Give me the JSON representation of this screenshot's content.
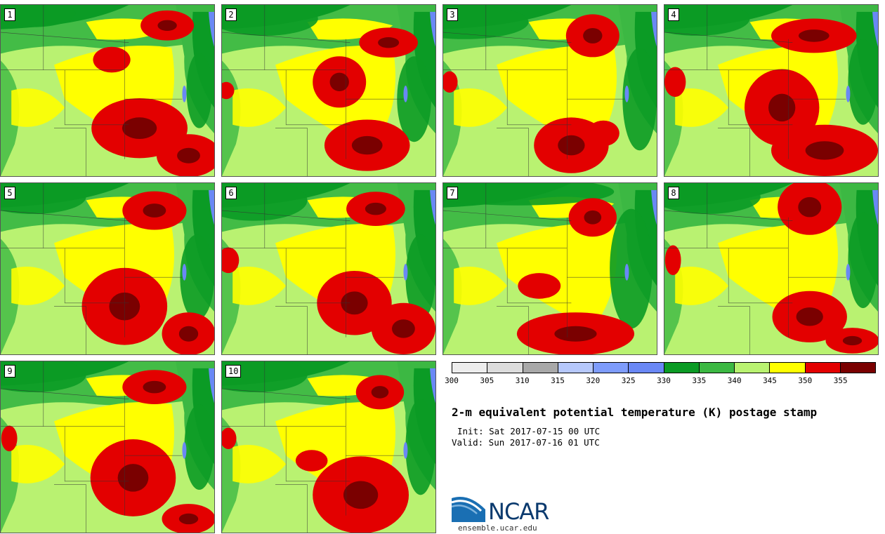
{
  "panels": [
    {
      "number": "1",
      "hot": [
        [
          0.78,
          0.12,
          0.1,
          0.07
        ],
        [
          0.52,
          0.32,
          0.07,
          0.06
        ],
        [
          0.65,
          0.72,
          0.18,
          0.14
        ],
        [
          0.88,
          0.88,
          0.12,
          0.1
        ]
      ],
      "cool": [
        [
          0.15,
          0.05,
          0.2,
          0.08
        ],
        [
          0.93,
          0.5,
          0.06,
          0.22
        ]
      ]
    },
    {
      "number": "2",
      "hot": [
        [
          0.78,
          0.22,
          0.11,
          0.07
        ],
        [
          0.55,
          0.45,
          0.1,
          0.12
        ],
        [
          0.68,
          0.82,
          0.16,
          0.12
        ],
        [
          0.02,
          0.5,
          0.03,
          0.04
        ]
      ],
      "cool": [
        [
          0.2,
          0.08,
          0.25,
          0.1
        ],
        [
          0.9,
          0.55,
          0.08,
          0.25
        ]
      ]
    },
    {
      "number": "3",
      "hot": [
        [
          0.7,
          0.18,
          0.1,
          0.1
        ],
        [
          0.6,
          0.82,
          0.14,
          0.13
        ],
        [
          0.75,
          0.75,
          0.06,
          0.06
        ],
        [
          0.03,
          0.45,
          0.03,
          0.05
        ]
      ],
      "cool": [
        [
          0.1,
          0.1,
          0.3,
          0.1
        ],
        [
          0.92,
          0.55,
          0.08,
          0.3
        ]
      ]
    },
    {
      "number": "4",
      "hot": [
        [
          0.7,
          0.18,
          0.16,
          0.08
        ],
        [
          0.55,
          0.6,
          0.14,
          0.18
        ],
        [
          0.75,
          0.85,
          0.2,
          0.12
        ],
        [
          0.05,
          0.45,
          0.04,
          0.07
        ]
      ],
      "cool": [
        [
          0.15,
          0.08,
          0.25,
          0.1
        ],
        [
          0.93,
          0.45,
          0.07,
          0.25
        ]
      ]
    },
    {
      "number": "5",
      "hot": [
        [
          0.72,
          0.16,
          0.12,
          0.09
        ],
        [
          0.58,
          0.72,
          0.16,
          0.18
        ],
        [
          0.88,
          0.88,
          0.1,
          0.1
        ]
      ],
      "cool": [
        [
          0.15,
          0.08,
          0.25,
          0.1
        ],
        [
          0.92,
          0.55,
          0.08,
          0.25
        ]
      ]
    },
    {
      "number": "6",
      "hot": [
        [
          0.72,
          0.15,
          0.11,
          0.08
        ],
        [
          0.62,
          0.7,
          0.14,
          0.15
        ],
        [
          0.85,
          0.85,
          0.12,
          0.12
        ],
        [
          0.03,
          0.45,
          0.04,
          0.06
        ]
      ],
      "cool": [
        [
          0.15,
          0.1,
          0.25,
          0.12
        ],
        [
          0.93,
          0.55,
          0.07,
          0.25
        ]
      ]
    },
    {
      "number": "7",
      "hot": [
        [
          0.7,
          0.2,
          0.09,
          0.09
        ],
        [
          0.45,
          0.6,
          0.08,
          0.06
        ],
        [
          0.62,
          0.88,
          0.22,
          0.1
        ]
      ],
      "cool": [
        [
          0.35,
          0.05,
          0.45,
          0.08
        ],
        [
          0.88,
          0.5,
          0.1,
          0.35
        ]
      ]
    },
    {
      "number": "8",
      "hot": [
        [
          0.68,
          0.14,
          0.12,
          0.13
        ],
        [
          0.68,
          0.78,
          0.14,
          0.12
        ],
        [
          0.88,
          0.92,
          0.1,
          0.06
        ],
        [
          0.04,
          0.45,
          0.03,
          0.07
        ]
      ],
      "cool": [
        [
          0.2,
          0.08,
          0.25,
          0.1
        ],
        [
          0.93,
          0.45,
          0.07,
          0.28
        ]
      ]
    },
    {
      "number": "9",
      "hot": [
        [
          0.72,
          0.15,
          0.12,
          0.08
        ],
        [
          0.62,
          0.68,
          0.16,
          0.18
        ],
        [
          0.88,
          0.92,
          0.1,
          0.07
        ],
        [
          0.04,
          0.45,
          0.03,
          0.06
        ]
      ],
      "cool": [
        [
          0.15,
          0.08,
          0.25,
          0.1
        ],
        [
          0.93,
          0.5,
          0.07,
          0.25
        ]
      ]
    },
    {
      "number": "10",
      "hot": [
        [
          0.74,
          0.18,
          0.09,
          0.08
        ],
        [
          0.42,
          0.58,
          0.06,
          0.05
        ],
        [
          0.65,
          0.78,
          0.18,
          0.18
        ],
        [
          0.03,
          0.45,
          0.03,
          0.05
        ]
      ],
      "cool": [
        [
          0.15,
          0.08,
          0.25,
          0.1
        ],
        [
          0.93,
          0.5,
          0.07,
          0.28
        ]
      ]
    }
  ],
  "colorbar": {
    "colors": [
      "#ededed",
      "#dcdcdc",
      "#a8a8a8",
      "#b6c8fb",
      "#7e9cfb",
      "#6a88f5",
      "#0b9b25",
      "#3cb843",
      "#b9f271",
      "#ffff00",
      "#e30000",
      "#7a0000"
    ],
    "ticks": [
      "300",
      "305",
      "310",
      "315",
      "320",
      "325",
      "330",
      "335",
      "340",
      "345",
      "350",
      "355"
    ]
  },
  "colors": {
    "land_base": "#b9f271",
    "warm": "#ffff00",
    "hot": "#e30000",
    "very_hot": "#7a0000",
    "cool": "#3cb843",
    "cold": "#0b9b25",
    "water": "#6a88f5",
    "border": "#333333"
  },
  "title": "2-m equivalent potential temperature (K) postage stamp",
  "init": "Init: Sat 2017-07-15 00 UTC",
  "valid": "Valid: Sun 2017-07-16 01 UTC",
  "logo": {
    "text": "NCAR",
    "website": "ensemble.ucar.edu"
  }
}
